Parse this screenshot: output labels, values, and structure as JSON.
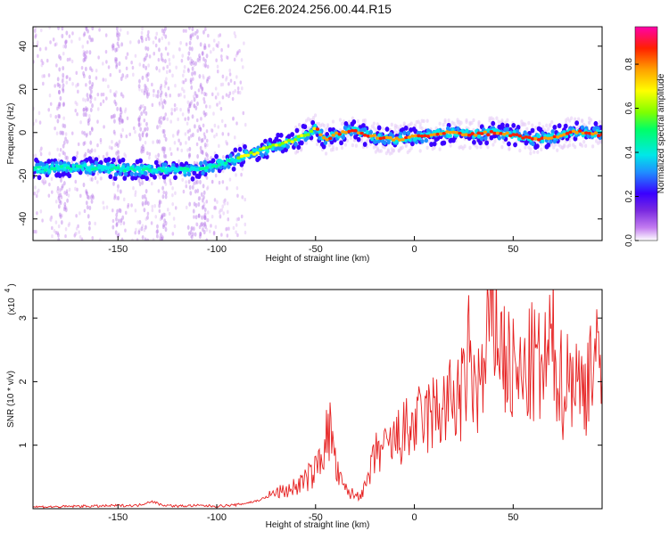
{
  "title": "C2E6.2024.256.00.44.R15",
  "chart_data": [
    {
      "type": "heatmap",
      "xlabel": "Height of straight line (km)",
      "ylabel": "Frequency (Hz)",
      "xlim": [
        -193,
        95
      ],
      "ylim": [
        -50,
        49
      ],
      "xticks": [
        -150,
        -100,
        -50,
        0,
        50
      ],
      "yticks": [
        -40,
        -20,
        0,
        20,
        40
      ],
      "colorbar": {
        "label": "Normalized spectral amplitude",
        "range": [
          0,
          0.97
        ],
        "ticks": [
          "0.0",
          "0.2",
          "0.4",
          "0.6",
          "0.8"
        ],
        "tick_values": [
          0.0,
          0.2,
          0.4,
          0.6,
          0.8
        ],
        "colors": [
          "#ffffff",
          "#c37cf0",
          "#7a2ae0",
          "#3a00ff",
          "#1f8fff",
          "#00e8e8",
          "#00ff66",
          "#80ff00",
          "#ffff00",
          "#ffa000",
          "#ff2000",
          "#ff00aa"
        ]
      },
      "ridge": {
        "x": [
          -193,
          -170,
          -150,
          -130,
          -110,
          -100,
          -95,
          -90,
          -80,
          -70,
          -60,
          -55,
          -50,
          -47,
          -45,
          -40,
          -30,
          -25,
          -20,
          -10,
          0,
          10,
          20,
          30,
          40,
          50,
          60,
          70,
          80,
          90,
          95
        ],
        "y": [
          -17,
          -16,
          -17,
          -17,
          -17,
          -15,
          -14,
          -12,
          -9,
          -6,
          -3,
          -1,
          2,
          -1,
          -3,
          -1,
          1,
          -1,
          -2,
          -3,
          -2,
          -1,
          0,
          -1,
          0,
          -1,
          -3,
          -2,
          0,
          0,
          -1
        ]
      }
    },
    {
      "type": "line",
      "xlabel": "Height of straight line (km)",
      "ylabel": "SNR (10 * v/v)",
      "yscale_label": "(x10",
      "yscale_exp": "4",
      "xlim": [
        -193,
        95
      ],
      "ylim": [
        0,
        3.45
      ],
      "xticks": [
        -150,
        -100,
        -50,
        0,
        50
      ],
      "yticks": [
        1,
        2,
        3
      ],
      "series": [
        {
          "color": "#e62020",
          "x": [
            -193,
            -180,
            -170,
            -160,
            -150,
            -140,
            -133,
            -128,
            -120,
            -110,
            -100,
            -90,
            -80,
            -75,
            -70,
            -65,
            -60,
            -55,
            -50,
            -47,
            -44,
            -42,
            -40,
            -38,
            -35,
            -30,
            -25,
            -22,
            -20,
            -18,
            -15,
            -10,
            -5,
            0,
            5,
            10,
            15,
            20,
            25,
            28,
            30,
            35,
            38,
            40,
            45,
            50,
            55,
            60,
            65,
            70,
            75,
            80,
            85,
            90,
            95
          ],
          "y": [
            0.03,
            0.03,
            0.04,
            0.04,
            0.05,
            0.05,
            0.12,
            0.06,
            0.04,
            0.05,
            0.04,
            0.06,
            0.12,
            0.18,
            0.25,
            0.28,
            0.35,
            0.45,
            0.6,
            0.9,
            1.15,
            1.25,
            0.7,
            0.45,
            0.3,
            0.2,
            0.3,
            0.6,
            0.8,
            0.95,
            0.9,
            1.05,
            1.2,
            1.3,
            1.4,
            1.5,
            1.6,
            1.7,
            1.8,
            2.5,
            1.9,
            2.0,
            2.8,
            3.2,
            2.4,
            2.1,
            2.0,
            2.3,
            2.1,
            2.6,
            1.9,
            2.2,
            1.8,
            2.5,
            1.9
          ]
        }
      ]
    }
  ]
}
